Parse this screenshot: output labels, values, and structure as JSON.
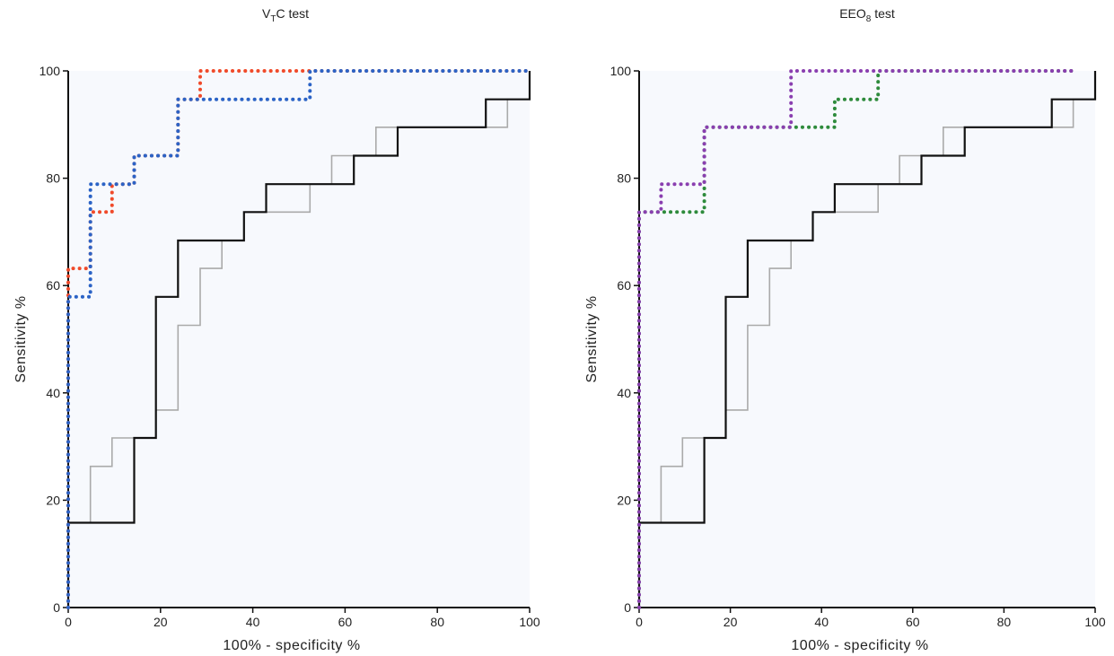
{
  "chart_data": [
    {
      "type": "line",
      "title_main": "V",
      "title_sub": "T",
      "title_rest": "C test",
      "xlabel": "100% - specificity %",
      "ylabel": "Sensitivity %",
      "xlim": [
        0,
        100
      ],
      "ylim": [
        0,
        100
      ],
      "xticks": [
        "0",
        "20",
        "40",
        "60",
        "80",
        "100"
      ],
      "yticks": [
        "0",
        "20",
        "40",
        "60",
        "80",
        "100"
      ],
      "grid": false,
      "series": [
        {
          "style": "solid",
          "color": "#aaaaaa",
          "x": [
            0,
            0,
            4.8,
            4.8,
            9.5,
            9.5,
            14.3,
            14.3,
            19,
            19,
            23.8,
            23.8,
            28.6,
            28.6,
            33.3,
            33.3,
            38.1,
            38.1,
            42.9,
            42.9,
            52.4,
            52.4,
            57.1,
            57.1,
            61.9,
            61.9,
            66.7,
            66.7,
            71.4,
            71.4,
            90.5,
            90.5,
            95.2,
            95.2,
            100,
            100
          ],
          "y": [
            0,
            15.8,
            15.8,
            26.3,
            26.3,
            31.6,
            31.6,
            31.6,
            31.6,
            36.8,
            36.8,
            52.6,
            52.6,
            63.2,
            63.2,
            68.4,
            68.4,
            73.7,
            73.7,
            73.7,
            73.7,
            78.9,
            78.9,
            84.2,
            84.2,
            84.2,
            84.2,
            89.5,
            89.5,
            89.5,
            89.5,
            89.5,
            89.5,
            94.7,
            94.7,
            100
          ]
        },
        {
          "style": "solid",
          "color": "#111111",
          "x": [
            0,
            0,
            14.3,
            14.3,
            19,
            19,
            23.8,
            23.8,
            38.1,
            38.1,
            42.9,
            42.9,
            57.1,
            57.1,
            61.9,
            61.9,
            66.7,
            66.7,
            71.4,
            71.4,
            90.5,
            90.5,
            100,
            100
          ],
          "y": [
            0,
            15.8,
            15.8,
            31.6,
            31.6,
            57.9,
            57.9,
            68.4,
            68.4,
            73.7,
            73.7,
            78.9,
            78.9,
            78.9,
            78.9,
            84.2,
            84.2,
            84.2,
            84.2,
            89.5,
            89.5,
            94.7,
            94.7,
            100
          ]
        },
        {
          "style": "dotted",
          "color": "#f04a2a",
          "x": [
            0,
            0,
            4.8,
            4.8,
            9.5,
            9.5,
            14.3,
            14.3,
            23.8,
            23.8,
            28.6,
            28.6,
            100
          ],
          "y": [
            0,
            63.2,
            63.2,
            73.7,
            73.7,
            78.9,
            78.9,
            84.2,
            84.2,
            94.7,
            94.7,
            100,
            100
          ]
        },
        {
          "style": "dotted",
          "color": "#2b63c6",
          "x": [
            0,
            0,
            4.8,
            4.8,
            14.3,
            14.3,
            23.8,
            23.8,
            52.4,
            52.4,
            100
          ],
          "y": [
            0,
            57.9,
            57.9,
            78.9,
            78.9,
            84.2,
            84.2,
            94.7,
            94.7,
            100,
            100
          ]
        }
      ]
    },
    {
      "type": "line",
      "title_main": "EEO",
      "title_sub": "8",
      "title_rest": " test",
      "xlabel": "100% - specificity %",
      "ylabel": "Sensitivity %",
      "xlim": [
        0,
        100
      ],
      "ylim": [
        0,
        100
      ],
      "xticks": [
        "0",
        "20",
        "40",
        "60",
        "80",
        "100"
      ],
      "yticks": [
        "0",
        "20",
        "40",
        "60",
        "80",
        "100"
      ],
      "grid": false,
      "series": [
        {
          "style": "solid",
          "color": "#aaaaaa",
          "x": [
            0,
            0,
            4.8,
            4.8,
            9.5,
            9.5,
            14.3,
            14.3,
            19,
            19,
            23.8,
            23.8,
            28.6,
            28.6,
            33.3,
            33.3,
            38.1,
            38.1,
            42.9,
            42.9,
            52.4,
            52.4,
            57.1,
            57.1,
            61.9,
            61.9,
            66.7,
            66.7,
            71.4,
            71.4,
            90.5,
            90.5,
            95.2,
            95.2,
            100,
            100
          ],
          "y": [
            0,
            15.8,
            15.8,
            26.3,
            26.3,
            31.6,
            31.6,
            31.6,
            31.6,
            36.8,
            36.8,
            52.6,
            52.6,
            63.2,
            63.2,
            68.4,
            68.4,
            73.7,
            73.7,
            73.7,
            73.7,
            78.9,
            78.9,
            84.2,
            84.2,
            84.2,
            84.2,
            89.5,
            89.5,
            89.5,
            89.5,
            89.5,
            89.5,
            94.7,
            94.7,
            100
          ]
        },
        {
          "style": "solid",
          "color": "#111111",
          "x": [
            0,
            0,
            14.3,
            14.3,
            19,
            19,
            23.8,
            23.8,
            38.1,
            38.1,
            42.9,
            42.9,
            57.1,
            57.1,
            61.9,
            61.9,
            66.7,
            66.7,
            71.4,
            71.4,
            90.5,
            90.5,
            100,
            100
          ],
          "y": [
            0,
            15.8,
            15.8,
            31.6,
            31.6,
            57.9,
            57.9,
            68.4,
            68.4,
            73.7,
            73.7,
            78.9,
            78.9,
            78.9,
            78.9,
            84.2,
            84.2,
            84.2,
            84.2,
            89.5,
            89.5,
            94.7,
            94.7,
            100
          ]
        },
        {
          "style": "dotted",
          "color": "#2e8b3c",
          "x": [
            0,
            0,
            4.8,
            4.8,
            14.3,
            14.3,
            33.3,
            33.3,
            42.9,
            42.9,
            52.4,
            52.4,
            95
          ],
          "y": [
            0,
            73.7,
            73.7,
            73.7,
            73.7,
            89.5,
            89.5,
            89.5,
            89.5,
            94.7,
            94.7,
            100,
            100
          ]
        },
        {
          "style": "dotted",
          "color": "#8a3fb0",
          "x": [
            0,
            0,
            4.8,
            4.8,
            14.3,
            14.3,
            33.3,
            33.3,
            95
          ],
          "y": [
            0,
            73.7,
            73.7,
            78.9,
            78.9,
            89.5,
            89.5,
            100,
            100
          ]
        }
      ]
    }
  ]
}
